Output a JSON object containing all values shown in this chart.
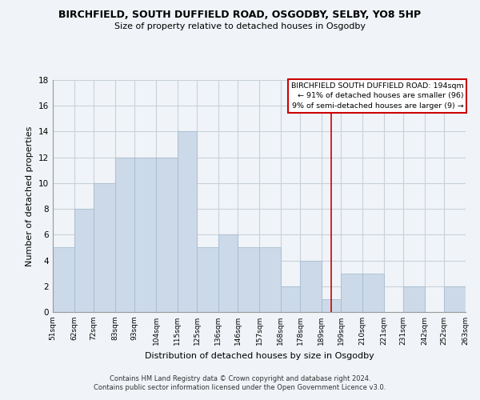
{
  "title": "BIRCHFIELD, SOUTH DUFFIELD ROAD, OSGODBY, SELBY, YO8 5HP",
  "subtitle": "Size of property relative to detached houses in Osgodby",
  "xlabel": "Distribution of detached houses by size in Osgodby",
  "ylabel": "Number of detached properties",
  "bar_edges": [
    51,
    62,
    72,
    83,
    93,
    104,
    115,
    125,
    136,
    146,
    157,
    168,
    178,
    189,
    199,
    210,
    221,
    231,
    242,
    252,
    263
  ],
  "bar_heights": [
    5,
    8,
    10,
    12,
    12,
    12,
    14,
    5,
    6,
    5,
    5,
    2,
    4,
    1,
    3,
    3,
    0,
    2,
    0,
    2,
    0
  ],
  "bar_color": "#ccd9e8",
  "bar_edge_color": "#a0b8cc",
  "vline_x": 194,
  "vline_color": "#cc0000",
  "annotation_title": "BIRCHFIELD SOUTH DUFFIELD ROAD: 194sqm",
  "annotation_line1": "← 91% of detached houses are smaller (96)",
  "annotation_line2": "9% of semi-detached houses are larger (9) →",
  "annotation_box_color": "#ffffff",
  "annotation_box_edge": "#cc0000",
  "ylim": [
    0,
    18
  ],
  "yticks": [
    0,
    2,
    4,
    6,
    8,
    10,
    12,
    14,
    16,
    18
  ],
  "tick_labels": [
    "51sqm",
    "62sqm",
    "72sqm",
    "83sqm",
    "93sqm",
    "104sqm",
    "115sqm",
    "125sqm",
    "136sqm",
    "146sqm",
    "157sqm",
    "168sqm",
    "178sqm",
    "189sqm",
    "199sqm",
    "210sqm",
    "221sqm",
    "231sqm",
    "242sqm",
    "252sqm",
    "263sqm"
  ],
  "footnote1": "Contains HM Land Registry data © Crown copyright and database right 2024.",
  "footnote2": "Contains public sector information licensed under the Open Government Licence v3.0.",
  "background_color": "#f0f4f8",
  "grid_color": "#c8d0d8"
}
